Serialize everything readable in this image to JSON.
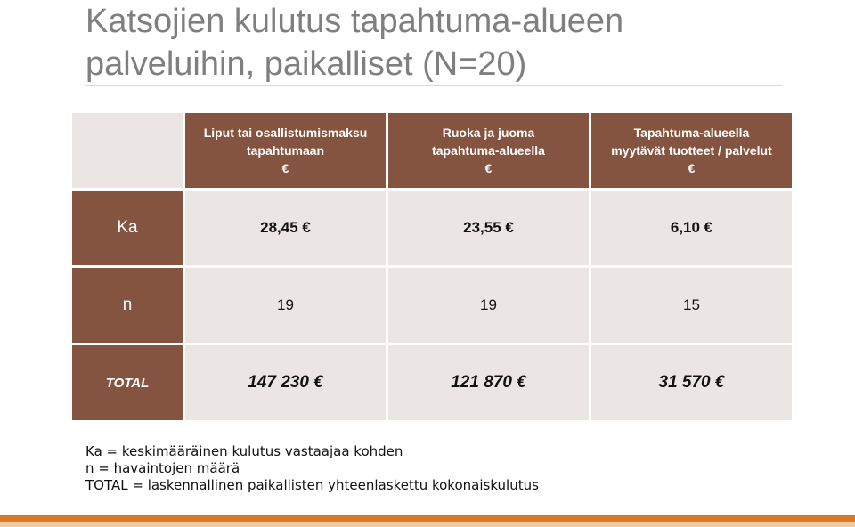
{
  "slide": {
    "title_line1": "Katsojien kulutus tapahtuma-alueen",
    "title_line2": "palveluihin, paikalliset (N=20)"
  },
  "table": {
    "headers": [
      {
        "line1": "Liput tai osallistumismaksu",
        "line2": "tapahtumaan",
        "line3": "€"
      },
      {
        "line1": "Ruoka ja juoma",
        "line2": "tapahtuma-alueella",
        "line3": "€"
      },
      {
        "line1": "Tapahtuma-alueella",
        "line2": "myytävät tuotteet / palvelut",
        "line3": "€"
      }
    ],
    "rows": [
      {
        "label": "Ka",
        "values": [
          "28,45 €",
          "23,55 €",
          "6,10 €"
        ]
      },
      {
        "label": "n",
        "values": [
          "19",
          "19",
          "15"
        ]
      },
      {
        "label": "TOTAL",
        "values": [
          "147 230 €",
          "121 870 €",
          "31 570 €"
        ]
      }
    ]
  },
  "notes": [
    "Ka = keskimääräinen kulutus vastaajaa kohden",
    "n = havaintojen määrä",
    "TOTAL = laskennallinen paikallisten yhteenlaskettu kokonaiskulutus"
  ],
  "colors": {
    "header_brown": "#845440",
    "cell_light": "#ebe5e3",
    "title_gray": "#7f7f7f",
    "accent_orange": "#d9782a",
    "accent_light_orange": "#f0c99c"
  }
}
